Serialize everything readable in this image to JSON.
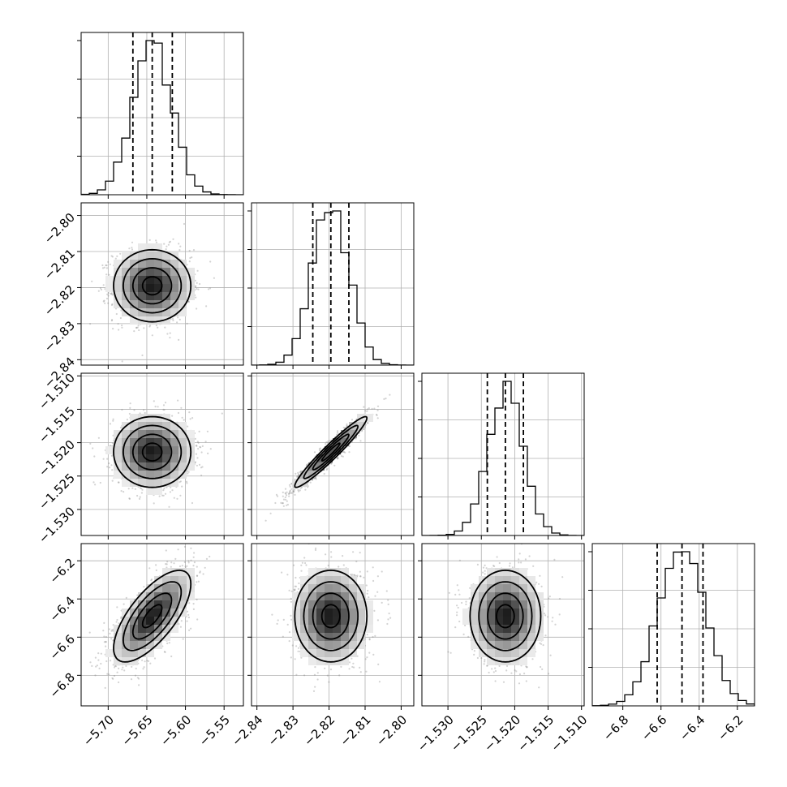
{
  "chart_data": {
    "type": "corner",
    "grid": true,
    "parameters": [
      {
        "range": [
          -5.735,
          -5.525
        ],
        "ticks": [
          -5.7,
          -5.65,
          -5.6,
          -5.55
        ],
        "tick_labels": [
          "−5.70",
          "−5.65",
          "−5.60",
          "−5.55"
        ],
        "mean": -5.643,
        "sigma": 0.025,
        "quantiles": [
          -5.668,
          -5.643,
          -5.617
        ]
      },
      {
        "range": [
          -2.8415,
          -2.7965
        ],
        "ticks": [
          -2.84,
          -2.83,
          -2.82,
          -2.81,
          -2.8
        ],
        "tick_labels": [
          "−2.84",
          "−2.83",
          "−2.82",
          "−2.81",
          "−2.80"
        ],
        "mean": -2.8195,
        "sigma": 0.005,
        "quantiles": [
          -2.8245,
          -2.8195,
          -2.8145
        ]
      },
      {
        "range": [
          -1.5339,
          -1.5096
        ],
        "ticks": [
          -1.53,
          -1.525,
          -1.52,
          -1.515,
          -1.51
        ],
        "tick_labels": [
          "−1.530",
          "−1.525",
          "−1.520",
          "−1.515",
          "−1.510"
        ],
        "mean": -1.5214,
        "sigma": 0.00265,
        "quantiles": [
          -1.5241,
          -1.5214,
          -1.5187
        ]
      },
      {
        "range": [
          -6.96,
          -6.11
        ],
        "ticks": [
          -6.8,
          -6.6,
          -6.4,
          -6.2
        ],
        "tick_labels": [
          "−6.8",
          "−6.6",
          "−6.4",
          "−6.2"
        ],
        "mean": -6.49,
        "sigma": 0.12,
        "quantiles": [
          -6.62,
          -6.49,
          -6.38
        ]
      }
    ],
    "correlations": {
      "1-0": 0.0,
      "2-0": 0.0,
      "2-1": 0.96,
      "3-0": 0.7,
      "3-1": 0.0,
      "3-2": 0.0
    },
    "histogram_bins": 20,
    "scatter_color": "#808080",
    "density_colormap": [
      "#ffffff",
      "#000000"
    ],
    "contour_color": "#000000"
  }
}
